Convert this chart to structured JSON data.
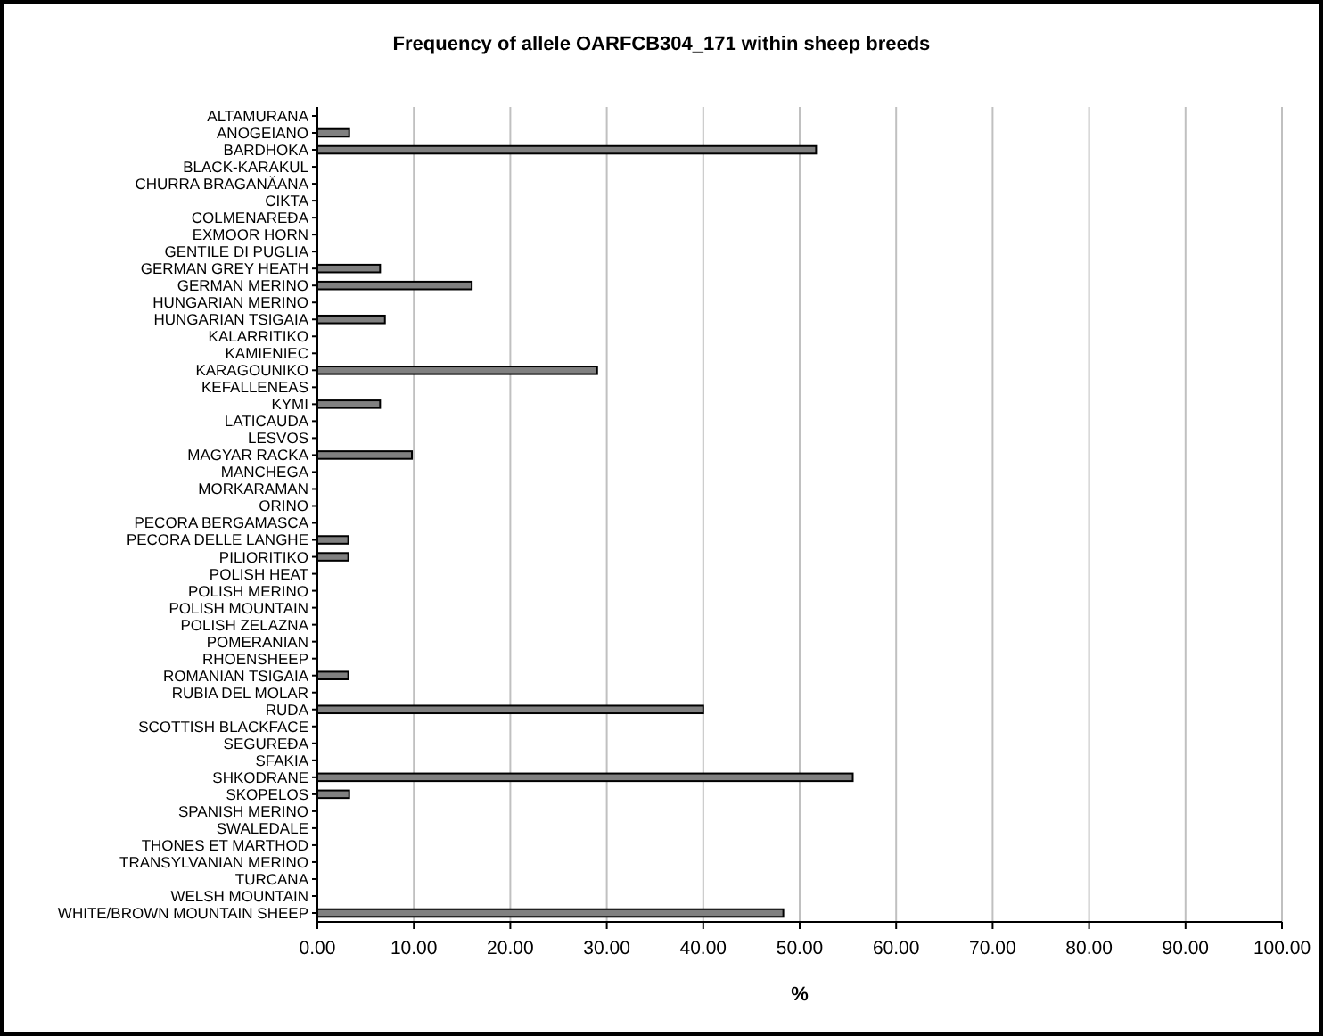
{
  "chart_data": {
    "type": "bar",
    "orientation": "horizontal",
    "title": "Frequency of allele OARFCB304_171 within sheep breeds",
    "xlabel": "%",
    "categories": [
      "ALTAMURANA",
      "ANOGEIANO",
      "BARDHOKA",
      "BLACK-KARAKUL",
      "CHURRA BRAGANĂANA",
      "CIKTA",
      "COLMENAREĐA",
      "EXMOOR HORN",
      "GENTILE DI PUGLIA",
      "GERMAN GREY HEATH",
      "GERMAN MERINO",
      "HUNGARIAN MERINO",
      "HUNGARIAN TSIGAIA",
      "KALARRITIKO",
      "KAMIENIEC",
      "KARAGOUNIKO",
      "KEFALLENEAS",
      "KYMI",
      "LATICAUDA",
      "LESVOS",
      "MAGYAR RACKA",
      "MANCHEGA",
      "MORKARAMAN",
      "ORINO",
      "PECORA BERGAMASCA",
      "PECORA DELLE LANGHE",
      "PILIORITIKO",
      "POLISH HEAT",
      "POLISH MERINO",
      "POLISH MOUNTAIN",
      "POLISH ZELAZNA",
      "POMERANIAN",
      "RHOENSHEEP",
      "ROMANIAN TSIGAIA",
      "RUBIA DEL MOLAR",
      "RUDA",
      "SCOTTISH BLACKFACE",
      "SEGUREĐA",
      "SFAKIA",
      "SHKODRANE",
      "SKOPELOS",
      "SPANISH MERINO",
      "SWALEDALE",
      "THONES ET MARTHOD",
      "TRANSYLVANIAN MERINO",
      "TURCANA",
      "WELSH MOUNTAIN",
      "WHITE/BROWN MOUNTAIN SHEEP"
    ],
    "values": [
      0,
      3.3,
      51.7,
      0,
      0,
      0,
      0,
      0,
      0,
      6.5,
      16.0,
      0,
      7.0,
      0,
      0,
      29.0,
      0,
      6.5,
      0,
      0,
      9.8,
      0,
      0,
      0,
      0,
      3.2,
      3.2,
      0,
      0,
      0,
      0,
      0,
      0,
      3.2,
      0,
      40.0,
      0,
      0,
      0,
      55.5,
      3.3,
      0,
      0,
      0,
      0,
      0,
      0,
      48.3
    ],
    "color": "#808080",
    "xlim": [
      0,
      100
    ],
    "xticks": [
      {
        "value": 0,
        "label": "0.00"
      },
      {
        "value": 10,
        "label": "10.00"
      },
      {
        "value": 20,
        "label": "20.00"
      },
      {
        "value": 30,
        "label": "30.00"
      },
      {
        "value": 40,
        "label": "40.00"
      },
      {
        "value": 50,
        "label": "50.00"
      },
      {
        "value": 60,
        "label": "60.00"
      },
      {
        "value": 70,
        "label": "70.00"
      },
      {
        "value": 80,
        "label": "80.00"
      },
      {
        "value": 90,
        "label": "90.00"
      },
      {
        "value": 100,
        "label": "100.00"
      }
    ],
    "grid": "x"
  }
}
